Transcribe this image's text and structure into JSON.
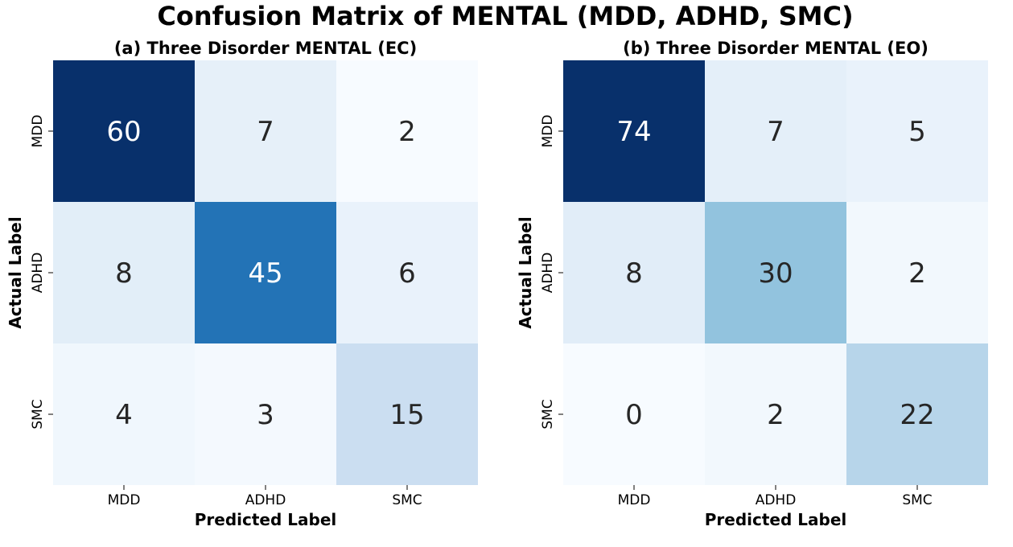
{
  "figure": {
    "title": "Confusion Matrix of MENTAL (MDD, ADHD, SMC)"
  },
  "chart_data": [
    {
      "type": "heatmap",
      "title": "(a) Three Disorder MENTAL (EC)",
      "xlabel": "Predicted Label",
      "ylabel": "Actual Label",
      "x_categories": [
        "MDD",
        "ADHD",
        "SMC"
      ],
      "y_categories": [
        "MDD",
        "ADHD",
        "SMC"
      ],
      "values": [
        [
          60,
          7,
          2
        ],
        [
          8,
          45,
          6
        ],
        [
          4,
          3,
          15
        ]
      ],
      "colormap": "Blues",
      "colorbar": false,
      "color_range": [
        2,
        60
      ]
    },
    {
      "type": "heatmap",
      "title": "(b) Three Disorder MENTAL (EO)",
      "xlabel": "Predicted Label",
      "ylabel": "Actual Label",
      "x_categories": [
        "MDD",
        "ADHD",
        "SMC"
      ],
      "y_categories": [
        "MDD",
        "ADHD",
        "SMC"
      ],
      "values": [
        [
          74,
          7,
          5
        ],
        [
          8,
          30,
          2
        ],
        [
          0,
          2,
          22
        ]
      ],
      "colormap": "Blues",
      "colorbar": false,
      "color_range": [
        0,
        74
      ]
    }
  ]
}
